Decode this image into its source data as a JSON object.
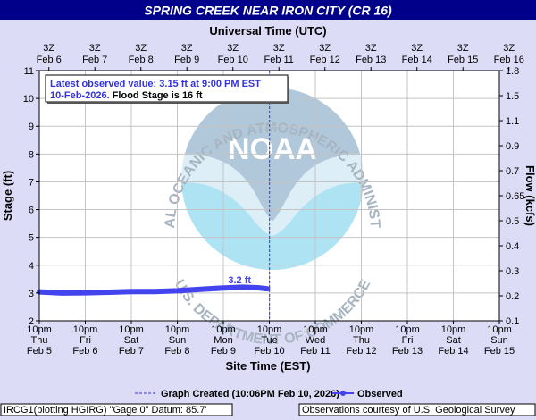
{
  "chart_data": {
    "type": "line",
    "title": "SPRING CREEK NEAR IRON CITY (CR 16)",
    "top_axis_label": "Universal Time (UTC)",
    "xlabel": "Site Time (EST)",
    "ylabel": "Stage (ft)",
    "y2label": "Flow (kcfs)",
    "ylim": [
      2,
      11
    ],
    "y_ticks": [
      "2",
      "3",
      "4",
      "5",
      "6",
      "7",
      "8",
      "9",
      "10",
      "11"
    ],
    "y2_ticks": [
      "0.1",
      "0.2",
      "0.3",
      "0.4",
      "0.5",
      "0.65",
      "0.7",
      "0.9",
      "1.1",
      "1.5",
      "1.8"
    ],
    "top_ticks": [
      {
        "l1": "3Z",
        "l2": "Feb  6"
      },
      {
        "l1": "3Z",
        "l2": "Feb  7"
      },
      {
        "l1": "3Z",
        "l2": "Feb  8"
      },
      {
        "l1": "3Z",
        "l2": "Feb  9"
      },
      {
        "l1": "3Z",
        "l2": "Feb 10"
      },
      {
        "l1": "3Z",
        "l2": "Feb 11"
      },
      {
        "l1": "3Z",
        "l2": "Feb 12"
      },
      {
        "l1": "3Z",
        "l2": "Feb 13"
      },
      {
        "l1": "3Z",
        "l2": "Feb 14"
      },
      {
        "l1": "3Z",
        "l2": "Feb 15"
      },
      {
        "l1": "3Z",
        "l2": "Feb 16"
      }
    ],
    "bottom_ticks": [
      {
        "l1": "10pm",
        "l2": "Thu",
        "l3": "Feb 5"
      },
      {
        "l1": "10pm",
        "l2": "Fri",
        "l3": "Feb 6"
      },
      {
        "l1": "10pm",
        "l2": "Sat",
        "l3": "Feb 7"
      },
      {
        "l1": "10pm",
        "l2": "Sun",
        "l3": "Feb 8"
      },
      {
        "l1": "10pm",
        "l2": "Mon",
        "l3": "Feb 9"
      },
      {
        "l1": "10pm",
        "l2": "Tue",
        "l3": "Feb 10"
      },
      {
        "l1": "10pm",
        "l2": "Wed",
        "l3": "Feb 11"
      },
      {
        "l1": "10pm",
        "l2": "Thu",
        "l3": "Feb 12"
      },
      {
        "l1": "10pm",
        "l2": "Fri",
        "l3": "Feb 13"
      },
      {
        "l1": "10pm",
        "l2": "Sat",
        "l3": "Feb 14"
      },
      {
        "l1": "10pm",
        "l2": "Sun",
        "l3": "Feb 15"
      }
    ],
    "x_start": "2026-02-05 22:00",
    "x_end": "2026-02-15 22:00",
    "graph_created": "2026-02-10 22:06",
    "series": [
      {
        "name": "Observed",
        "color": "#4444ee",
        "points": [
          {
            "x": "2026-02-05 22:00",
            "y": 3.04
          },
          {
            "x": "2026-02-06 10:00",
            "y": 3.0
          },
          {
            "x": "2026-02-06 22:00",
            "y": 3.01
          },
          {
            "x": "2026-02-07 10:00",
            "y": 3.03
          },
          {
            "x": "2026-02-07 22:00",
            "y": 3.05
          },
          {
            "x": "2026-02-08 10:00",
            "y": 3.05
          },
          {
            "x": "2026-02-08 22:00",
            "y": 3.08
          },
          {
            "x": "2026-02-09 10:00",
            "y": 3.13
          },
          {
            "x": "2026-02-09 22:00",
            "y": 3.18
          },
          {
            "x": "2026-02-10 08:00",
            "y": 3.21
          },
          {
            "x": "2026-02-10 16:00",
            "y": 3.19
          },
          {
            "x": "2026-02-10 21:00",
            "y": 3.15
          }
        ],
        "label": "3.2 ft"
      }
    ],
    "annotation": {
      "line1": "Latest observed value: 3.15 ft at 9:00 PM EST",
      "line2a": "10-Feb-2026.",
      "line2b": " Flood Stage is 16 ft"
    },
    "watermark": {
      "center": "NOAA",
      "ring_top": "NATIONAL OCEANIC AND ATMOSPHERIC ADMINISTRATION",
      "ring_bottom": "U.S. DEPARTMENT OF COMMERCE"
    },
    "legend": {
      "created": "Graph Created (10:06PM Feb 10, 2026)",
      "observed": "Observed"
    },
    "footer": {
      "left": "IRCG1(plotting HGIRG) \"Gage 0\" Datum: 85.7'",
      "right": "Observations courtesy of U.S. Geological Survey"
    },
    "colors": {
      "background": "#dcdcf7",
      "title_bar": "#00008b",
      "plot_bg": "#ffffff",
      "grid": "#bfbfbf",
      "observed": "#4444ee",
      "annotation_text": "#3333dd"
    }
  }
}
